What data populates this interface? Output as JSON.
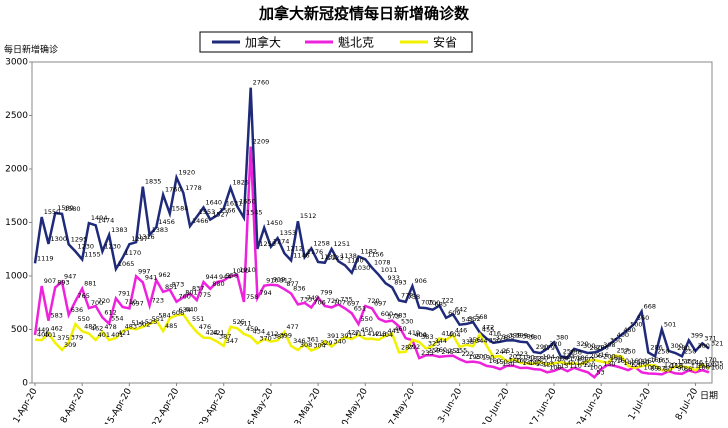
{
  "chart_data": {
    "type": "line",
    "title": "加拿大新冠疫情每日新增确诊数",
    "y_label": "每日新增确诊",
    "x_label": "日期",
    "ylim": [
      0,
      3000
    ],
    "yticks": [
      0,
      500,
      1000,
      1500,
      2000,
      2500,
      3000
    ],
    "grid": false,
    "legend": "top",
    "categories": [
      "1-Apr-20",
      null,
      null,
      null,
      null,
      null,
      null,
      "8-Apr-20",
      null,
      null,
      null,
      null,
      null,
      null,
      "15-Apr-20",
      null,
      null,
      null,
      null,
      null,
      null,
      "22-Apr-20",
      null,
      null,
      null,
      null,
      null,
      null,
      "29-Apr-20",
      null,
      null,
      null,
      null,
      null,
      null,
      "6-May-20",
      null,
      null,
      null,
      null,
      null,
      null,
      "13-May-20",
      null,
      null,
      null,
      null,
      null,
      null,
      "20-May-20",
      null,
      null,
      null,
      null,
      null,
      null,
      "27-May-20",
      null,
      null,
      null,
      null,
      null,
      null,
      "3-Jun-20",
      null,
      null,
      null,
      null,
      null,
      null,
      "10-Jun-20",
      null,
      null,
      null,
      null,
      null,
      null,
      "17-Jun-20",
      null,
      null,
      null,
      null,
      null,
      null,
      "24-Jun-20",
      null,
      null,
      null,
      null,
      null,
      null,
      "1-Jul-20",
      null,
      null,
      null,
      null,
      null,
      null,
      "8-Jul-20",
      null,
      null
    ],
    "series": [
      {
        "name": "加拿大",
        "color": "#1f2a7a",
        "values": [
          1119,
          1550,
          1300,
          1589,
          1580,
          1295,
          1230,
          1155,
          1494,
          1474,
          1230,
          1383,
          1065,
          1170,
          1297,
          1316,
          1835,
          1383,
          1456,
          1760,
          1584,
          1920,
          1778,
          1466,
          1553,
          1640,
          1527,
          1566,
          1631,
          1825,
          1650,
          1545,
          2760,
          1253,
          1450,
          1274,
          1353,
          1212,
          1146,
          1512,
          1176,
          1258,
          1131,
          1123,
          1251,
          1138,
          1100,
          1030,
          1182,
          1156,
          1078,
          1011,
          933,
          893,
          772,
          758,
          906,
          705,
          700,
          685,
          722,
          609,
          642,
          545,
          552,
          568,
          472,
          416,
          376,
          385,
          398,
          399,
          386,
          380,
          290,
          279,
          320,
          380,
          250,
          236,
          320,
          300,
          280,
          286,
          308,
          350,
          400,
          450,
          500,
          560,
          668,
          286,
          250,
          501,
          300,
          280,
          250,
          399,
          300,
          371,
          321
        ]
      },
      {
        "name": "魁北克",
        "color": "#ee22dd",
        "values": [
          449,
          907,
          583,
          893,
          947,
          636,
          765,
          881,
          700,
          720,
          612,
          554,
          791,
          710,
          697,
          997,
          941,
          723,
          962,
          851,
          873,
          760,
          801,
          837,
          775,
          944,
          880,
          944,
          958,
          1000,
          1010,
          758,
          2209,
          794,
          910,
          919,
          912,
          877,
          836,
          735,
          749,
          706,
          799,
          720,
          707,
          735,
          697,
          651,
          550,
          720,
          697,
          600,
          573,
          583,
          530,
          419,
          400,
          233,
          259,
          260,
          245,
          251,
          255,
          222,
          195,
          200,
          190,
          160,
          150,
          130,
          160,
          162,
          140,
          142,
          130,
          125,
          100,
          113,
          140,
          110,
          142,
          120,
          100,
          53,
          130,
          170,
          160,
          142,
          120,
          150,
          100,
          89,
          87,
          80,
          110,
          90,
          86,
          118,
          100,
          120,
          100
        ]
      },
      {
        "name": "安省",
        "color": "#f2f200",
        "values": [
          405,
          401,
          462,
          375,
          309,
          379,
          550,
          483,
          462,
          401,
          478,
          401,
          421,
          483,
          514,
          502,
          525,
          551,
          584,
          485,
          606,
          634,
          640,
          551,
          476,
          424,
          421,
          387,
          347,
          525,
          511,
          459,
          434,
          370,
          412,
          387,
          399,
          477,
          346,
          308,
          361,
          304,
          329,
          391,
          340,
          391,
          427,
          411,
          450,
          412,
          413,
          404,
          441,
          460,
          287,
          292,
          404,
          383,
          323,
          344,
          416,
          404,
          446,
          338,
          356,
          344,
          455,
          350,
          244,
          251,
          203,
          223,
          190,
          182,
          180,
          194,
          173,
          184,
          194,
          178,
          186,
          175,
          206,
          216,
          200,
          189,
          257,
          250,
          160,
          140,
          157,
          166,
          165,
          120,
          118,
          154,
          153,
          146,
          118,
          170,
          135
        ]
      }
    ]
  }
}
